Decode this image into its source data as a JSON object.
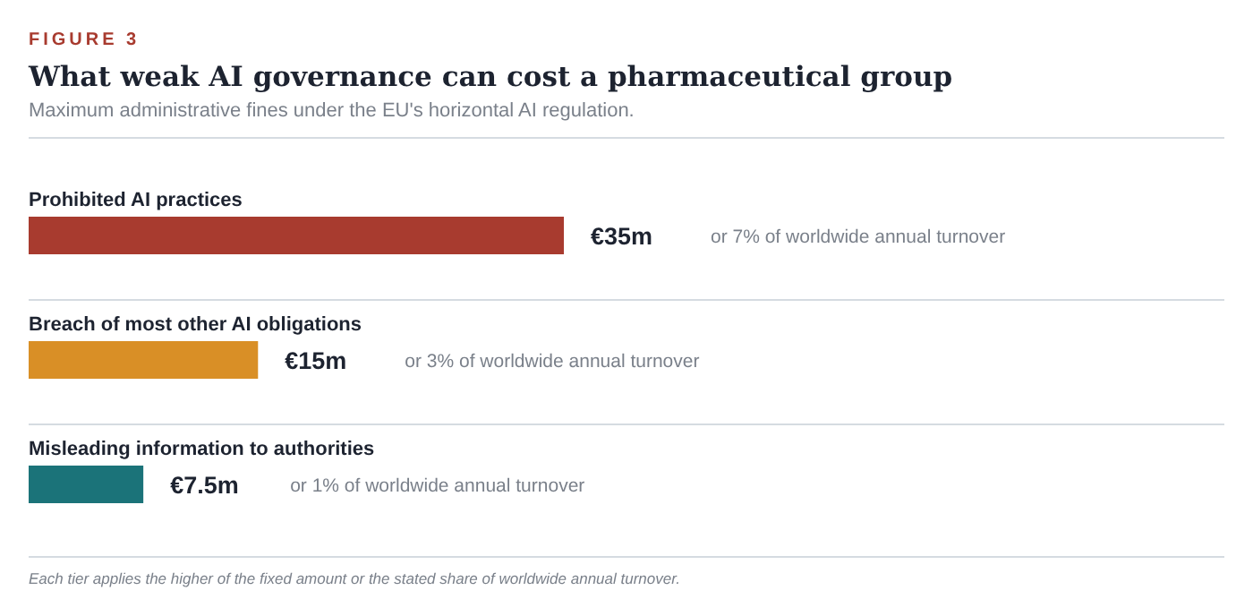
{
  "chart_data": {
    "type": "bar",
    "orientation": "horizontal",
    "title": "What weak AI governance can cost a pharmaceutical group",
    "subtitle": "Maximum administrative fines under the EU's horizontal AI regulation.",
    "categories": [
      "Prohibited AI practices",
      "Breach of most other AI obligations",
      "Misleading information to authorities"
    ],
    "values": [
      35,
      15,
      7.5
    ],
    "colors": [
      "#a83b2f",
      "#d98f26",
      "#1b7379"
    ],
    "value_labels": [
      "€35m",
      "€15m",
      "€7.5m"
    ],
    "annotations": [
      "FIGURE 3",
      "or 7% of worldwide annual turnover",
      "or 3% of worldwide annual turnover",
      "or 1% of worldwide annual turnover",
      "Each tier applies the higher of the fixed amount or the stated share of worldwide annual turnover."
    ]
  }
}
